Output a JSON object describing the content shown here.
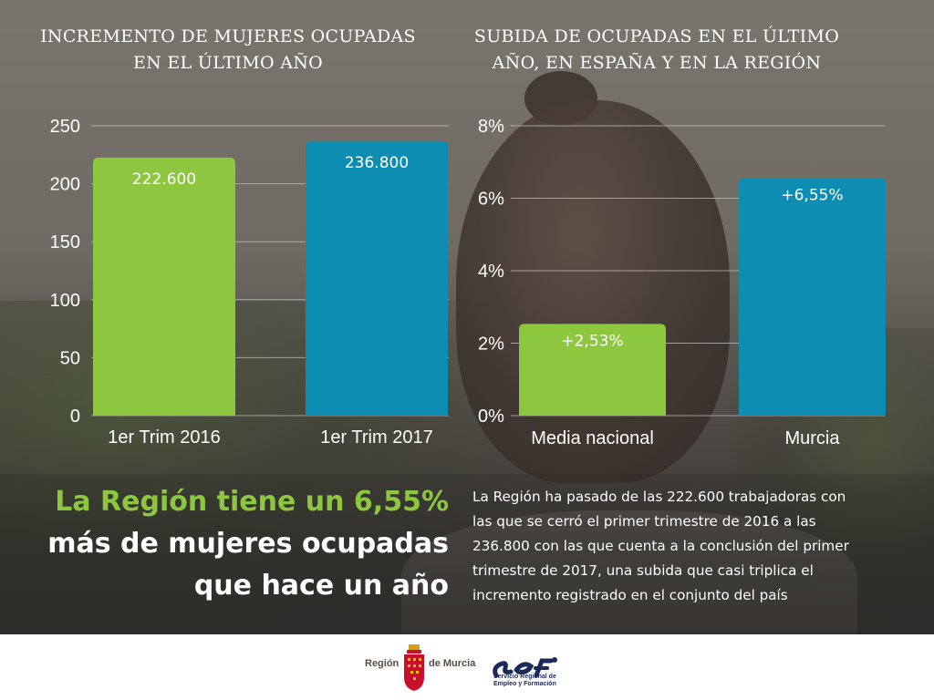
{
  "colors": {
    "green": "#8dc63f",
    "blue": "#0e8db3",
    "grid": "#c8c8c8",
    "text": "#ffffff"
  },
  "left_title_lines": [
    "INCREMENTO DE MUJERES OCUPADAS",
    "EN EL ÚLTIMO AÑO"
  ],
  "right_title_lines": [
    "SUBIDA DE  OCUPADAS EN EL ÚLTIMO",
    "AÑO, EN ESPAÑA Y EN LA REGIÓN"
  ],
  "chart_data": [
    {
      "type": "bar",
      "categories": [
        "1er Trim 2016",
        "1er Trim 2017"
      ],
      "values": [
        222.6,
        236.8
      ],
      "data_labels": [
        "222.600",
        "236.800"
      ],
      "bar_colors": [
        "#8dc63f",
        "#0e8db3"
      ],
      "yticks": [
        "0",
        "50",
        "100",
        "150",
        "200",
        "250"
      ],
      "ylim": [
        0,
        250
      ],
      "grid": true
    },
    {
      "type": "bar",
      "categories": [
        "Media nacional",
        "Murcia"
      ],
      "values": [
        2.53,
        6.55
      ],
      "data_labels": [
        "+2,53%",
        "+6,55%"
      ],
      "bar_colors": [
        "#8dc63f",
        "#0e8db3"
      ],
      "yticks": [
        "0%",
        "2%",
        "4%",
        "6%",
        "8%"
      ],
      "ylim": [
        0,
        8
      ],
      "grid": true
    }
  ],
  "headline": {
    "line1": "La Región tiene un 6,55%",
    "line2": "más de mujeres ocupadas",
    "line3": "que hace un año"
  },
  "body_lines": [
    "La Región ha pasado de las 222.600 trabajadoras con",
    "las que se cerró el primer trimestre de 2016 a las",
    "236.800 con las que cuenta a la conclusión del primer",
    "trimestre de 2017, una subida que casi triplica el",
    "incremento registrado en el conjunto del país"
  ],
  "footer": {
    "region_left": "Región",
    "region_right": "de Murcia",
    "sef_caption_lines": [
      "Servicio Regional de",
      "Empleo y Formación"
    ]
  }
}
